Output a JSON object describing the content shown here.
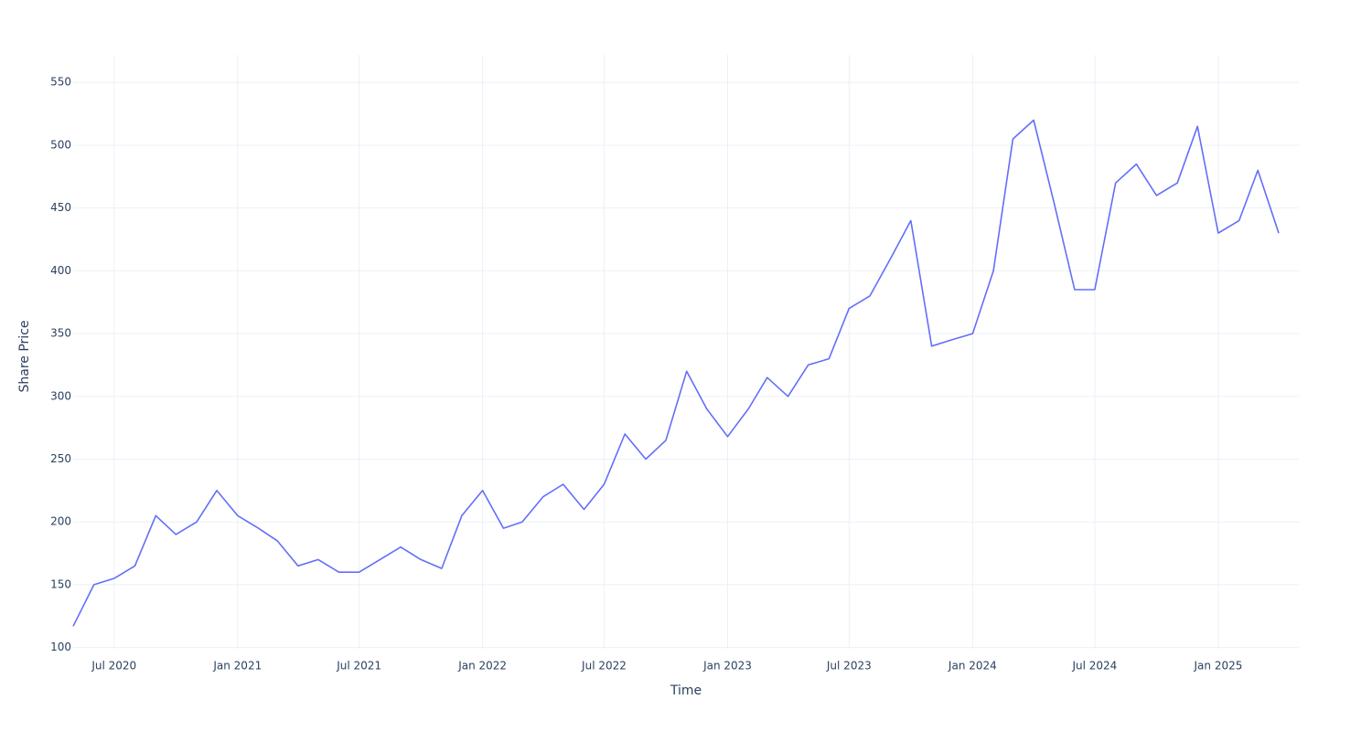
{
  "chart_data": {
    "type": "line",
    "x_label": "Time",
    "y_label": "Share Price",
    "x": [
      "2020-05",
      "2020-06",
      "2020-07",
      "2020-08",
      "2020-09",
      "2020-10",
      "2020-11",
      "2020-12",
      "2021-01",
      "2021-02",
      "2021-03",
      "2021-04",
      "2021-05",
      "2021-06",
      "2021-07",
      "2021-08",
      "2021-09",
      "2021-10",
      "2021-11",
      "2021-12",
      "2022-01",
      "2022-02",
      "2022-03",
      "2022-04",
      "2022-05",
      "2022-06",
      "2022-07",
      "2022-08",
      "2022-09",
      "2022-10",
      "2022-11",
      "2022-12",
      "2023-01",
      "2023-02",
      "2023-03",
      "2023-04",
      "2023-05",
      "2023-06",
      "2023-07",
      "2023-08",
      "2023-09",
      "2023-10",
      "2023-11",
      "2023-12",
      "2024-01",
      "2024-02",
      "2024-03",
      "2024-04",
      "2024-05",
      "2024-06",
      "2024-07",
      "2024-08",
      "2024-09",
      "2024-10",
      "2024-11",
      "2024-12",
      "2025-01",
      "2025-02",
      "2025-03",
      "2025-04"
    ],
    "series": [
      {
        "name": "Share Price",
        "color": "#636efa",
        "values": [
          117,
          150,
          155,
          165,
          205,
          190,
          200,
          225,
          205,
          195,
          185,
          165,
          170,
          160,
          160,
          170,
          180,
          170,
          163,
          205,
          225,
          195,
          200,
          220,
          230,
          210,
          230,
          270,
          250,
          265,
          320,
          290,
          268,
          290,
          315,
          300,
          325,
          330,
          370,
          380,
          410,
          440,
          340,
          345,
          350,
          400,
          505,
          520,
          455,
          385,
          385,
          470,
          485,
          460,
          470,
          515,
          430,
          440,
          480,
          430
        ]
      }
    ],
    "xlim": [
      "2020-05",
      "2025-05"
    ],
    "xticks": [
      {
        "value": "2020-07",
        "label": "Jul 2020"
      },
      {
        "value": "2021-01",
        "label": "Jan 2021"
      },
      {
        "value": "2021-07",
        "label": "Jul 2021"
      },
      {
        "value": "2022-01",
        "label": "Jan 2022"
      },
      {
        "value": "2022-07",
        "label": "Jul 2022"
      },
      {
        "value": "2023-01",
        "label": "Jan 2023"
      },
      {
        "value": "2023-07",
        "label": "Jul 2023"
      },
      {
        "value": "2024-01",
        "label": "Jan 2024"
      },
      {
        "value": "2024-07",
        "label": "Jul 2024"
      },
      {
        "value": "2025-01",
        "label": "Jan 2025"
      }
    ],
    "ylim": [
      99,
      572
    ],
    "yticks": [
      100,
      150,
      200,
      250,
      300,
      350,
      400,
      450,
      500,
      550
    ],
    "grid": true
  }
}
